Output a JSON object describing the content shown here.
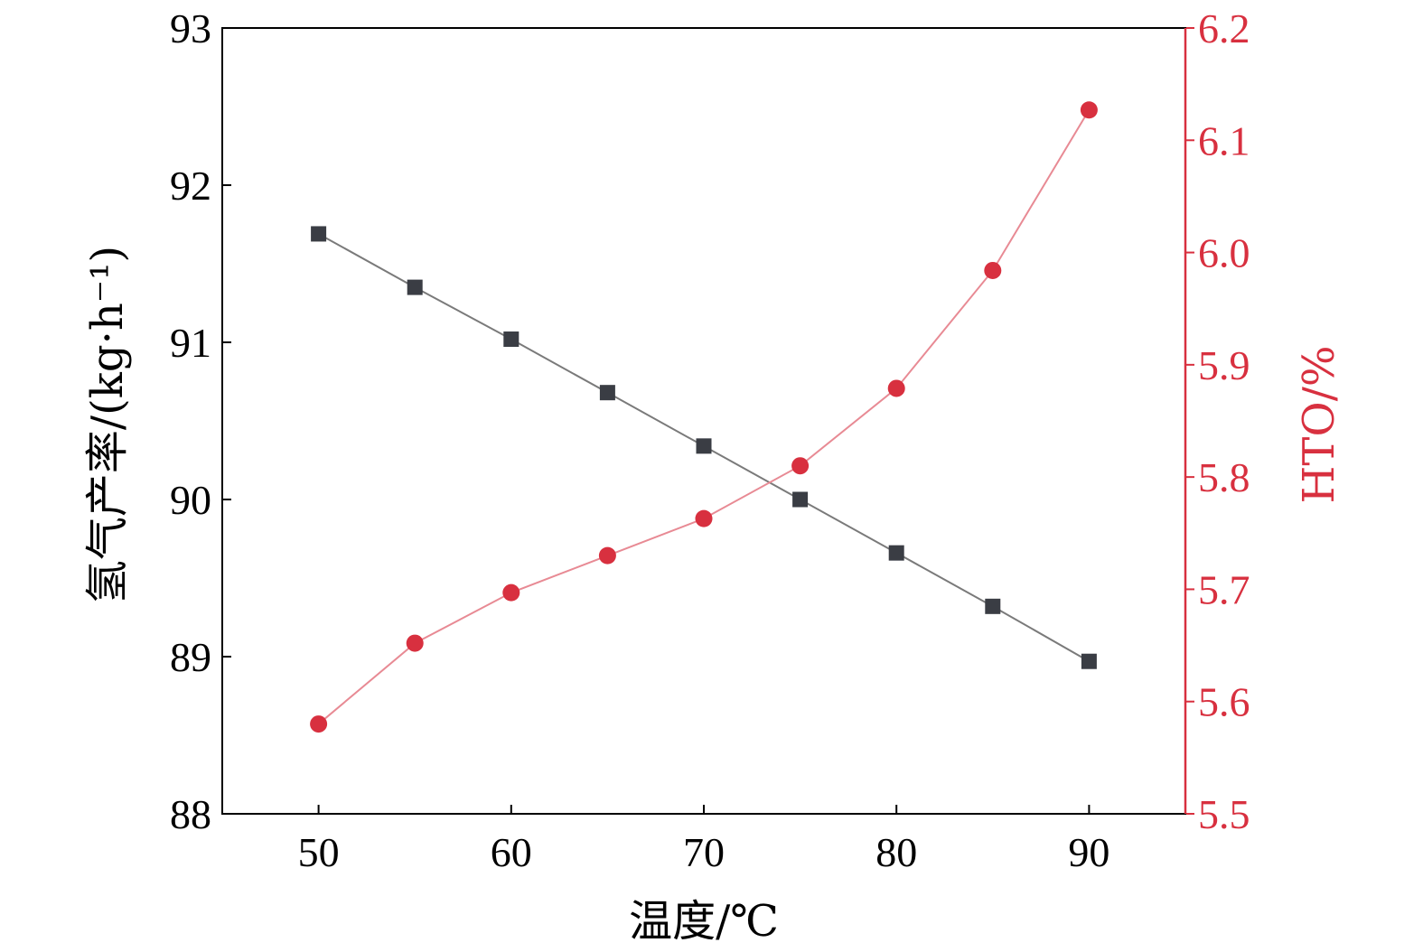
{
  "chart_data": {
    "type": "line",
    "title": "",
    "xlabel": "温度/℃",
    "ylabel_left": "氢气产率/(kg·h⁻¹)",
    "ylabel_right": "HTO/%",
    "xlim": [
      45,
      95
    ],
    "ylim_left": [
      88,
      93
    ],
    "ylim_right": [
      5.5,
      6.2
    ],
    "x_ticks": [
      50,
      60,
      70,
      80,
      90
    ],
    "y_left_ticks": [
      88,
      89,
      90,
      91,
      92,
      93
    ],
    "y_right_ticks": [
      "5.5",
      "5.6",
      "5.7",
      "5.8",
      "5.9",
      "6.0",
      "6.1",
      "6.2"
    ],
    "grid": false,
    "x": [
      50,
      55,
      60,
      65,
      70,
      75,
      80,
      85,
      90
    ],
    "series": [
      {
        "axis": "left",
        "marker": "square",
        "color": "#3a3d44",
        "line_color": "#7a7a7a",
        "values": [
          91.69,
          91.35,
          91.02,
          90.68,
          90.34,
          90.0,
          89.66,
          89.32,
          88.97
        ]
      },
      {
        "axis": "right",
        "marker": "circle",
        "color": "#d8303f",
        "line_color": "#e88a94",
        "values": [
          5.58,
          5.652,
          5.697,
          5.73,
          5.763,
          5.81,
          5.879,
          5.984,
          6.127
        ]
      }
    ],
    "colors": {
      "axis": "#000000",
      "right_axis": "#d8303f"
    }
  }
}
